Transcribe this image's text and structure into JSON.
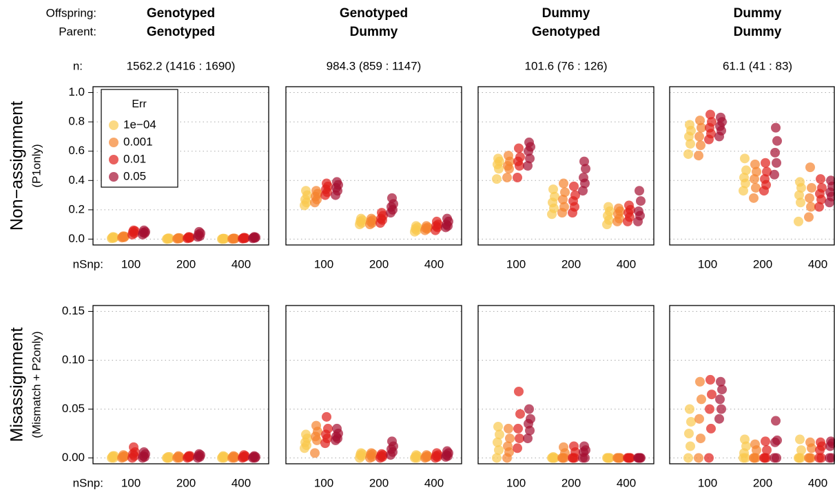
{
  "headers": {
    "offspring_label": "Offspring:",
    "parent_label": "Parent:",
    "n_label": "n:",
    "columns": [
      {
        "offspring": "Genotyped",
        "parent": "Genotyped",
        "n": "1562.2 (1416 : 1690)"
      },
      {
        "offspring": "Genotyped",
        "parent": "Dummy",
        "n": "984.3 (859 : 1147)"
      },
      {
        "offspring": "Dummy",
        "parent": "Genotyped",
        "n": "101.6 (76 : 126)"
      },
      {
        "offspring": "Dummy",
        "parent": "Dummy",
        "n": "61.1 (41 : 83)"
      }
    ]
  },
  "legend": {
    "title": "Err",
    "corner": "top-left",
    "series": [
      {
        "name": "1e−04",
        "color": "#f9c94f"
      },
      {
        "name": "0.001",
        "color": "#f5832e"
      },
      {
        "name": "0.01",
        "color": "#e01e1a"
      },
      {
        "name": "0.05",
        "color": "#a50f32"
      }
    ]
  },
  "chart_data": [
    {
      "type": "scatter",
      "ylabel": "Non−assignment",
      "ylabel_sub": "(P1only)",
      "xlabel": "nSnp:",
      "categories": [
        100,
        200,
        400
      ],
      "ylim": [
        -0.04,
        1.04
      ],
      "ytick_labels": true,
      "yticks": [
        {
          "value": 0,
          "label": "0.0"
        },
        0.2,
        0.4,
        0.6,
        0.8,
        {
          "value": 1,
          "label": "1.0"
        }
      ],
      "grid": true,
      "series": [
        {
          "values": [
            [
              0.005,
              0.008,
              0.01,
              0.012,
              0.015
            ],
            [
              0,
              0.002,
              0.003,
              0.005,
              0.006
            ],
            [
              0,
              0.001,
              0.002,
              0.003,
              0.004
            ]
          ]
        },
        {
          "values": [
            [
              0.01,
              0.012,
              0.015,
              0.018,
              0.02
            ],
            [
              0.002,
              0.004,
              0.005,
              0.007,
              0.008
            ],
            [
              0.001,
              0.002,
              0.003,
              0.004,
              0.005
            ]
          ]
        },
        {
          "values": [
            [
              0.03,
              0.04,
              0.05,
              0.055,
              0.06
            ],
            [
              0.005,
              0.008,
              0.01,
              0.012,
              0.015
            ],
            [
              0.003,
              0.005,
              0.006,
              0.008,
              0.01
            ]
          ]
        },
        {
          "values": [
            [
              0.03,
              0.04,
              0.045,
              0.05,
              0.06
            ],
            [
              0.015,
              0.02,
              0.03,
              0.04,
              0.05
            ],
            [
              0.005,
              0.008,
              0.01,
              0.012,
              0.015
            ]
          ]
        }
      ]
    },
    {
      "type": "scatter",
      "categories": [
        100,
        200,
        400
      ],
      "ylim": [
        -0.04,
        1.04
      ],
      "ytick_labels": false,
      "yticks": [
        0,
        0.2,
        0.4,
        0.6,
        0.8,
        1
      ],
      "grid": true,
      "series": [
        {
          "values": [
            [
              0.23,
              0.25,
              0.27,
              0.3,
              0.33
            ],
            [
              0.1,
              0.11,
              0.12,
              0.13,
              0.14
            ],
            [
              0.05,
              0.06,
              0.07,
              0.08,
              0.09
            ]
          ]
        },
        {
          "values": [
            [
              0.25,
              0.27,
              0.29,
              0.31,
              0.33
            ],
            [
              0.1,
              0.11,
              0.12,
              0.13,
              0.14
            ],
            [
              0.06,
              0.07,
              0.075,
              0.08,
              0.09
            ]
          ]
        },
        {
          "values": [
            [
              0.3,
              0.32,
              0.34,
              0.36,
              0.38
            ],
            [
              0.11,
              0.13,
              0.14,
              0.16,
              0.18
            ],
            [
              0.06,
              0.08,
              0.09,
              0.1,
              0.12
            ]
          ]
        },
        {
          "values": [
            [
              0.3,
              0.33,
              0.35,
              0.37,
              0.39
            ],
            [
              0.18,
              0.2,
              0.22,
              0.24,
              0.28
            ],
            [
              0.08,
              0.09,
              0.1,
              0.12,
              0.14
            ]
          ]
        }
      ]
    },
    {
      "type": "scatter",
      "categories": [
        100,
        200,
        400
      ],
      "ylim": [
        -0.04,
        1.04
      ],
      "ytick_labels": false,
      "yticks": [
        0,
        0.2,
        0.4,
        0.6,
        0.8,
        1
      ],
      "grid": true,
      "series": [
        {
          "values": [
            [
              0.41,
              0.48,
              0.51,
              0.53,
              0.55
            ],
            [
              0.17,
              0.21,
              0.25,
              0.29,
              0.34
            ],
            [
              0.1,
              0.13,
              0.16,
              0.19,
              0.22
            ]
          ]
        },
        {
          "values": [
            [
              0.42,
              0.48,
              0.5,
              0.53,
              0.57
            ],
            [
              0.18,
              0.22,
              0.27,
              0.32,
              0.38
            ],
            [
              0.12,
              0.14,
              0.17,
              0.19,
              0.21
            ]
          ]
        },
        {
          "values": [
            [
              0.42,
              0.5,
              0.53,
              0.56,
              0.62
            ],
            [
              0.18,
              0.22,
              0.26,
              0.3,
              0.36
            ],
            [
              0.12,
              0.15,
              0.18,
              0.2,
              0.23
            ]
          ]
        },
        {
          "values": [
            [
              0.5,
              0.55,
              0.6,
              0.63,
              0.66
            ],
            [
              0.33,
              0.38,
              0.42,
              0.48,
              0.53
            ],
            [
              0.12,
              0.16,
              0.19,
              0.26,
              0.33
            ]
          ]
        }
      ]
    },
    {
      "type": "scatter",
      "categories": [
        100,
        200,
        400
      ],
      "ylim": [
        -0.04,
        1.04
      ],
      "ytick_labels": false,
      "yticks": [
        0,
        0.2,
        0.4,
        0.6,
        0.8,
        1
      ],
      "grid": true,
      "series": [
        {
          "values": [
            [
              0.58,
              0.65,
              0.7,
              0.74,
              0.78
            ],
            [
              0.33,
              0.38,
              0.42,
              0.47,
              0.55
            ],
            [
              0.12,
              0.25,
              0.3,
              0.35,
              0.39
            ]
          ]
        },
        {
          "values": [
            [
              0.57,
              0.64,
              0.7,
              0.76,
              0.81
            ],
            [
              0.28,
              0.35,
              0.41,
              0.46,
              0.51
            ],
            [
              0.15,
              0.22,
              0.28,
              0.35,
              0.49
            ]
          ]
        },
        {
          "values": [
            [
              0.68,
              0.72,
              0.76,
              0.8,
              0.85
            ],
            [
              0.33,
              0.37,
              0.41,
              0.46,
              0.52
            ],
            [
              0.22,
              0.27,
              0.31,
              0.35,
              0.41
            ]
          ]
        },
        {
          "values": [
            [
              0.7,
              0.74,
              0.77,
              0.8,
              0.83
            ],
            [
              0.44,
              0.52,
              0.59,
              0.67,
              0.76
            ],
            [
              0.25,
              0.29,
              0.32,
              0.36,
              0.4
            ]
          ]
        }
      ]
    },
    {
      "type": "scatter",
      "ylabel": "Misassignment",
      "ylabel_sub": "(Mismatch + P2only)",
      "xlabel": "nSnp:",
      "categories": [
        100,
        200,
        400
      ],
      "ylim": [
        -0.006,
        0.156
      ],
      "ytick_labels": true,
      "yticks": [
        {
          "value": 0,
          "label": "0.00"
        },
        {
          "value": 0.05,
          "label": "0.05"
        },
        {
          "value": 0.1,
          "label": "0.10"
        },
        {
          "value": 0.15,
          "label": "0.15"
        }
      ],
      "grid": true,
      "series": [
        {
          "values": [
            [
              0,
              0,
              0.001,
              0.002,
              0.002
            ],
            [
              0,
              0,
              0,
              0.001,
              0.001
            ],
            [
              0,
              0,
              0.001,
              0.001,
              0.002
            ]
          ]
        },
        {
          "values": [
            [
              0,
              0.001,
              0.001,
              0.002,
              0.003
            ],
            [
              0,
              0,
              0.001,
              0.001,
              0.002
            ],
            [
              0,
              0,
              0.001,
              0.001,
              0.002
            ]
          ]
        },
        {
          "values": [
            [
              0,
              0.002,
              0.004,
              0.006,
              0.011
            ],
            [
              0,
              0.001,
              0.001,
              0.002,
              0.002
            ],
            [
              0,
              0.001,
              0.001,
              0.002,
              0.003
            ]
          ]
        },
        {
          "values": [
            [
              0,
              0.001,
              0.002,
              0.004,
              0.006
            ],
            [
              0,
              0.001,
              0.002,
              0.003,
              0.004
            ],
            [
              0,
              0,
              0.001,
              0.001,
              0.002
            ]
          ]
        }
      ]
    },
    {
      "type": "scatter",
      "categories": [
        100,
        200,
        400
      ],
      "ylim": [
        -0.006,
        0.156
      ],
      "ytick_labels": false,
      "yticks": [
        0,
        0.05,
        0.1,
        0.15
      ],
      "grid": true,
      "series": [
        {
          "values": [
            [
              0.01,
              0.013,
              0.016,
              0.02,
              0.024
            ],
            [
              0,
              0.002,
              0.003,
              0.004,
              0.005
            ],
            [
              0,
              0,
              0.001,
              0.002,
              0.003
            ]
          ]
        },
        {
          "values": [
            [
              0.005,
              0.018,
              0.022,
              0.027,
              0.033
            ],
            [
              0,
              0.001,
              0.003,
              0.004,
              0.005
            ],
            [
              0,
              0.001,
              0.001,
              0.002,
              0.003
            ]
          ]
        },
        {
          "values": [
            [
              0.015,
              0.02,
              0.024,
              0.03,
              0.042
            ],
            [
              0,
              0.001,
              0.002,
              0.003,
              0.004
            ],
            [
              0,
              0.001,
              0.002,
              0.003,
              0.005
            ]
          ]
        },
        {
          "values": [
            [
              0.018,
              0.02,
              0.022,
              0.025,
              0.03
            ],
            [
              0.003,
              0.006,
              0.009,
              0.012,
              0.017
            ],
            [
              0.001,
              0.002,
              0.003,
              0.005,
              0.007
            ]
          ]
        }
      ]
    },
    {
      "type": "scatter",
      "categories": [
        100,
        200,
        400
      ],
      "ylim": [
        -0.006,
        0.156
      ],
      "ytick_labels": false,
      "yticks": [
        0,
        0.05,
        0.1,
        0.15
      ],
      "grid": true,
      "series": [
        {
          "values": [
            [
              0,
              0.008,
              0.016,
              0.024,
              0.032
            ],
            [
              0,
              0,
              0,
              0,
              0.001
            ],
            [
              0,
              0,
              0,
              0,
              0
            ]
          ]
        },
        {
          "values": [
            [
              0,
              0.006,
              0.012,
              0.02,
              0.03
            ],
            [
              0,
              0,
              0,
              0.005,
              0.011
            ],
            [
              0,
              0,
              0,
              0,
              0
            ]
          ]
        },
        {
          "values": [
            [
              0.01,
              0.02,
              0.03,
              0.045,
              0.068
            ],
            [
              0,
              0,
              0,
              0.006,
              0.012
            ],
            [
              0,
              0,
              0,
              0,
              0
            ]
          ]
        },
        {
          "values": [
            [
              0.02,
              0.028,
              0.035,
              0.04,
              0.05
            ],
            [
              0,
              0,
              0.006,
              0.008,
              0.012
            ],
            [
              0,
              0,
              0,
              0,
              0
            ]
          ]
        }
      ]
    },
    {
      "type": "scatter",
      "categories": [
        100,
        200,
        400
      ],
      "ylim": [
        -0.006,
        0.156
      ],
      "ytick_labels": false,
      "yticks": [
        0,
        0.05,
        0.1,
        0.15
      ],
      "grid": true,
      "series": [
        {
          "values": [
            [
              0,
              0.012,
              0.025,
              0.037,
              0.05
            ],
            [
              0,
              0,
              0.005,
              0.012,
              0.019
            ],
            [
              0,
              0,
              0,
              0.008,
              0.019
            ]
          ]
        },
        {
          "values": [
            [
              0,
              0.02,
              0.04,
              0.06,
              0.078
            ],
            [
              0,
              0,
              0,
              0.008,
              0.014
            ],
            [
              0,
              0,
              0,
              0.01,
              0.016
            ]
          ]
        },
        {
          "values": [
            [
              0,
              0.03,
              0.05,
              0.065,
              0.08
            ],
            [
              0,
              0,
              0,
              0.008,
              0.017
            ],
            [
              0,
              0,
              0.008,
              0.012,
              0.016
            ]
          ]
        },
        {
          "values": [
            [
              0.04,
              0.05,
              0.06,
              0.07,
              0.078
            ],
            [
              0,
              0,
              0.016,
              0.018,
              0.038
            ],
            [
              0,
              0,
              0.012,
              0.015,
              0.017
            ]
          ]
        }
      ]
    }
  ]
}
